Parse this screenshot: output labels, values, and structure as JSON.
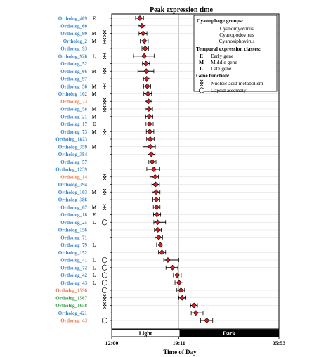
{
  "chart_data": {
    "type": "scatter",
    "title": "Peak expression time",
    "xlabel": "Time of Day",
    "x_ticks": [
      "12:00",
      "19:11",
      "05:53"
    ],
    "light_dark_bar": {
      "light_label": "Light",
      "dark_label": "Dark",
      "boundary": "19:11"
    },
    "group_colors": {
      "Cyanomyovirus": "#3a82c8",
      "Cyanopodovirus": "#3a9a4a",
      "Cyanosiphovirus": "#e8764a"
    },
    "marker_color": "#d42020",
    "rows": [
      {
        "label": "Ortholog_409",
        "group": "Cyanomyovirus",
        "class": "E",
        "function": "",
        "time": "15:00",
        "ci": [
          "14:33",
          "15:24"
        ]
      },
      {
        "label": "Ortholog_60",
        "group": "Cyanomyovirus",
        "class": "",
        "function": "",
        "time": "15:13",
        "ci": [
          "14:50",
          "15:35"
        ]
      },
      {
        "label": "Ortholog_99",
        "group": "Cyanomyovirus",
        "class": "M",
        "function": "nucleic",
        "time": "15:21",
        "ci": [
          "14:55",
          "15:46"
        ]
      },
      {
        "label": "Ortholog_2",
        "group": "Cyanomyovirus",
        "class": "M",
        "function": "nucleic",
        "time": "15:29",
        "ci": [
          "15:03",
          "15:54"
        ]
      },
      {
        "label": "Ortholog_93",
        "group": "Cyanomyovirus",
        "class": "",
        "function": "",
        "time": "15:35",
        "ci": [
          "15:14",
          "15:56"
        ]
      },
      {
        "label": "Ortholog_926",
        "group": "Cyanomyovirus",
        "class": "L",
        "function": "nucleic",
        "time": "15:28",
        "ci": [
          "14:20",
          "16:32"
        ]
      },
      {
        "label": "Ortholog_52",
        "group": "Cyanomyovirus",
        "class": "",
        "function": "",
        "time": "15:40",
        "ci": [
          "15:17",
          "16:03"
        ]
      },
      {
        "label": "Ortholog_66",
        "group": "Cyanomyovirus",
        "class": "M",
        "function": "nucleic",
        "time": "15:42",
        "ci": [
          "14:48",
          "16:30"
        ]
      },
      {
        "label": "Ortholog_97",
        "group": "Cyanomyovirus",
        "class": "",
        "function": "",
        "time": "15:44",
        "ci": [
          "15:24",
          "16:05"
        ]
      },
      {
        "label": "Ortholog_56",
        "group": "Cyanomyovirus",
        "class": "M",
        "function": "nucleic",
        "time": "15:48",
        "ci": [
          "15:25",
          "16:10"
        ]
      },
      {
        "label": "Ortholog_102",
        "group": "Cyanomyovirus",
        "class": "M",
        "function": "",
        "time": "15:52",
        "ci": [
          "15:26",
          "16:16"
        ]
      },
      {
        "label": "Ortholog_73",
        "group": "Cyanosiphovirus",
        "class": "",
        "function": "nucleic",
        "time": "15:56",
        "ci": [
          "15:34",
          "16:18"
        ]
      },
      {
        "label": "Ortholog_58",
        "group": "Cyanomyovirus",
        "class": "M",
        "function": "nucleic",
        "time": "15:58",
        "ci": [
          "15:35",
          "16:22"
        ]
      },
      {
        "label": "Ortholog_21",
        "group": "Cyanomyovirus",
        "class": "M",
        "function": "",
        "time": "16:00",
        "ci": [
          "15:38",
          "16:24"
        ]
      },
      {
        "label": "Ortholog_17",
        "group": "Cyanomyovirus",
        "class": "E",
        "function": "",
        "time": "16:02",
        "ci": [
          "15:40",
          "16:26"
        ]
      },
      {
        "label": "Ortholog_73",
        "group": "Cyanomyovirus",
        "class": "M",
        "function": "nucleic",
        "time": "16:04",
        "ci": [
          "15:42",
          "16:30"
        ]
      },
      {
        "label": "Ortholog_1823",
        "group": "Cyanomyovirus",
        "class": "",
        "function": "",
        "time": "16:07",
        "ci": [
          "15:44",
          "16:32"
        ]
      },
      {
        "label": "Ortholog_359",
        "group": "Cyanomyovirus",
        "class": "M",
        "function": "",
        "time": "16:08",
        "ci": [
          "15:20",
          "16:40"
        ]
      },
      {
        "label": "Ortholog_384",
        "group": "Cyanomyovirus",
        "class": "",
        "function": "",
        "time": "16:14",
        "ci": [
          "15:52",
          "16:38"
        ]
      },
      {
        "label": "Ortholog_57",
        "group": "Cyanomyovirus",
        "class": "",
        "function": "",
        "time": "16:20",
        "ci": [
          "15:58",
          "16:44"
        ]
      },
      {
        "label": "Ortholog_1239",
        "group": "Cyanomyovirus",
        "class": "",
        "function": "",
        "time": "16:30",
        "ci": [
          "15:45",
          "17:08"
        ]
      },
      {
        "label": "Ortholog_14",
        "group": "Cyanosiphovirus",
        "class": "",
        "function": "nucleic",
        "time": "16:38",
        "ci": [
          "16:05",
          "17:00"
        ]
      },
      {
        "label": "Ortholog_394",
        "group": "Cyanomyovirus",
        "class": "",
        "function": "",
        "time": "16:42",
        "ci": [
          "16:18",
          "17:06"
        ]
      },
      {
        "label": "Ortholog_103",
        "group": "Cyanomyovirus",
        "class": "M",
        "function": "nucleic",
        "time": "16:44",
        "ci": [
          "16:20",
          "17:10"
        ]
      },
      {
        "label": "Ortholog_386",
        "group": "Cyanomyovirus",
        "class": "",
        "function": "",
        "time": "16:46",
        "ci": [
          "16:24",
          "17:08"
        ]
      },
      {
        "label": "Ortholog_67",
        "group": "Cyanomyovirus",
        "class": "M",
        "function": "nucleic",
        "time": "16:48",
        "ci": [
          "16:27",
          "17:10"
        ]
      },
      {
        "label": "Ortholog_18",
        "group": "Cyanomyovirus",
        "class": "E",
        "function": "",
        "time": "16:50",
        "ci": [
          "16:28",
          "17:14"
        ]
      },
      {
        "label": "Ortholog_25",
        "group": "Cyanomyovirus",
        "class": "L",
        "function": "capsid",
        "time": "16:54",
        "ci": [
          "16:30",
          "17:46"
        ]
      },
      {
        "label": "Ortholog_156",
        "group": "Cyanomyovirus",
        "class": "",
        "function": "",
        "time": "16:56",
        "ci": [
          "16:34",
          "17:18"
        ]
      },
      {
        "label": "Ortholog_71",
        "group": "Cyanomyovirus",
        "class": "",
        "function": "",
        "time": "17:02",
        "ci": [
          "16:38",
          "17:26"
        ]
      },
      {
        "label": "Ortholog_79",
        "group": "Cyanomyovirus",
        "class": "L",
        "function": "",
        "time": "17:12",
        "ci": [
          "16:48",
          "17:36"
        ]
      },
      {
        "label": "Ortholog_152",
        "group": "Cyanomyovirus",
        "class": "",
        "function": "",
        "time": "17:22",
        "ci": [
          "17:00",
          "17:46"
        ]
      },
      {
        "label": "Ortholog_41",
        "group": "Cyanomyovirus",
        "class": "L",
        "function": "capsid",
        "time": "18:00",
        "ci": [
          "17:34",
          "19:10"
        ]
      },
      {
        "label": "Ortholog_72",
        "group": "Cyanomyovirus",
        "class": "L",
        "function": "capsid",
        "time": "18:30",
        "ci": [
          "17:48",
          "19:04"
        ]
      },
      {
        "label": "Ortholog_42",
        "group": "Cyanomyovirus",
        "class": "L",
        "function": "capsid",
        "time": "19:00",
        "ci": [
          "18:36",
          "19:26"
        ]
      },
      {
        "label": "Ortholog_43",
        "group": "Cyanomyovirus",
        "class": "L",
        "function": "capsid",
        "time": "19:12",
        "ci": [
          "18:46",
          "19:38"
        ]
      },
      {
        "label": "Ortholog_1596",
        "group": "Cyanosiphovirus",
        "class": "",
        "function": "capsid",
        "time": "19:24",
        "ci": [
          "18:58",
          "19:48"
        ]
      },
      {
        "label": "Ortholog_1567",
        "group": "Cyanopodovirus",
        "class": "",
        "function": "nucleic",
        "time": "19:32",
        "ci": [
          "19:10",
          "19:56"
        ]
      },
      {
        "label": "Ortholog_1658",
        "group": "Cyanopodovirus",
        "class": "",
        "function": "nucleic",
        "time": "20:48",
        "ci": [
          "20:26",
          "21:10"
        ]
      },
      {
        "label": "Ortholog_421",
        "group": "Cyanomyovirus",
        "class": "",
        "function": "",
        "time": "21:00",
        "ci": [
          "20:30",
          "21:46"
        ]
      },
      {
        "label": "Ortholog_43",
        "group": "Cyanosiphovirus",
        "class": "",
        "function": "capsid",
        "time": "22:10",
        "ci": [
          "21:30",
          "22:48"
        ]
      }
    ],
    "legend": {
      "groups_title": "Cyanophage groups:",
      "groups": [
        "Cyanomyovirus",
        "Cyanopodovirus",
        "Cyanosiphovirus"
      ],
      "classes_title": "Temporal expression classes:",
      "classes": [
        {
          "code": "E",
          "name": "Early gene"
        },
        {
          "code": "M",
          "name": "Middle gene"
        },
        {
          "code": "L",
          "name": "Late gene"
        }
      ],
      "function_title": "Gene function:",
      "functions": [
        {
          "symbol": "nucleic",
          "name": "Nucleic acid metabolism"
        },
        {
          "symbol": "capsid",
          "name": "Capsid assembly"
        }
      ]
    }
  }
}
